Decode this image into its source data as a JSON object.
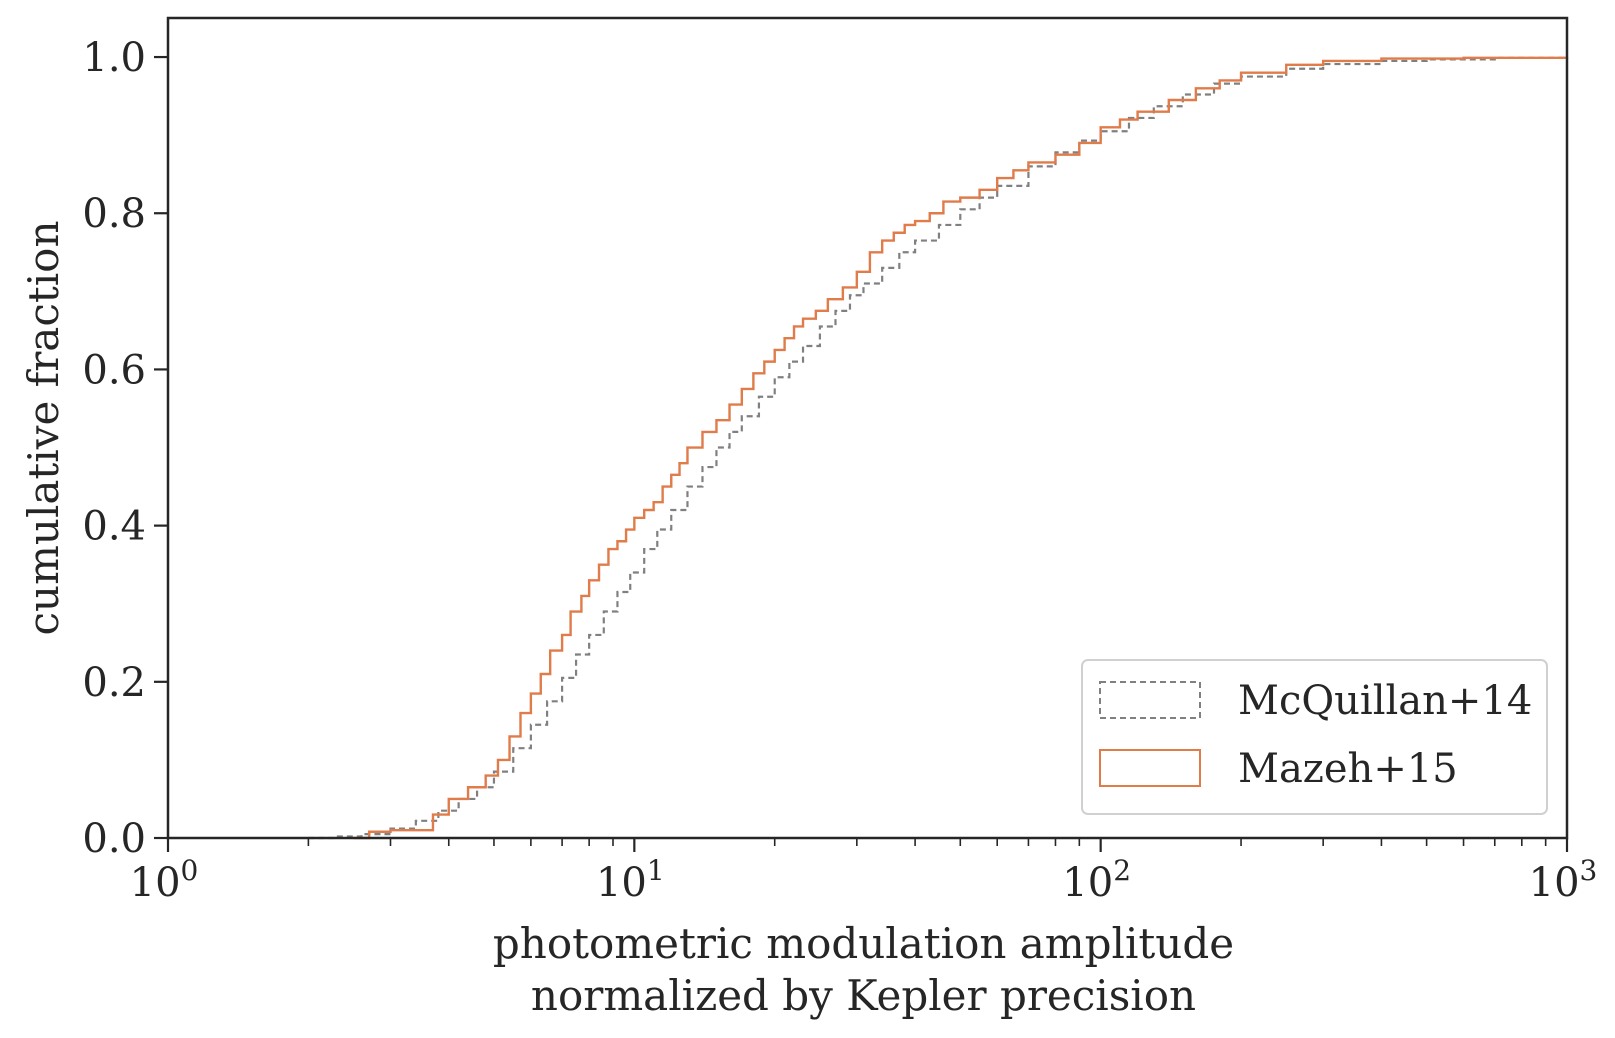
{
  "chart_data": {
    "type": "line",
    "subtype": "cumulative step histogram",
    "xlabel_line1": "photometric modulation amplitude",
    "xlabel_line2": "normalized by Kepler precision",
    "ylabel": "cumulative fraction",
    "xscale": "log",
    "xlim": [
      1,
      1000
    ],
    "ylim": [
      0,
      1.05
    ],
    "xticks": [
      {
        "base": "10",
        "exp": "0",
        "value": 1
      },
      {
        "base": "10",
        "exp": "1",
        "value": 10
      },
      {
        "base": "10",
        "exp": "2",
        "value": 100
      },
      {
        "base": "10",
        "exp": "3",
        "value": 1000
      }
    ],
    "yticks": [
      "0.0",
      "0.2",
      "0.4",
      "0.6",
      "0.8",
      "1.0"
    ],
    "legend_position": "lower right",
    "grid": false,
    "series": [
      {
        "name": "McQuillan+14",
        "color": "#808080",
        "style": "dashed",
        "x": [
          2.0,
          2.3,
          2.6,
          3.0,
          3.4,
          3.8,
          4.2,
          4.6,
          5.0,
          5.5,
          6.0,
          6.5,
          7.0,
          7.5,
          8.0,
          8.6,
          9.2,
          9.8,
          10.5,
          11.2,
          12.0,
          13.0,
          14.0,
          15.0,
          16.0,
          17.0,
          18.5,
          20.0,
          21.5,
          23.0,
          25.0,
          27.0,
          29.0,
          31.0,
          34.0,
          37.0,
          40.0,
          45.0,
          50.0,
          55.0,
          60.0,
          70.0,
          80.0,
          90.0,
          100.0,
          115.0,
          130.0,
          150.0,
          175.0,
          200.0,
          250.0,
          300.0,
          400.0,
          500.0,
          700.0,
          1000.0
        ],
        "y": [
          0.0,
          0.002,
          0.005,
          0.012,
          0.022,
          0.035,
          0.05,
          0.065,
          0.085,
          0.115,
          0.145,
          0.175,
          0.205,
          0.235,
          0.26,
          0.29,
          0.315,
          0.34,
          0.37,
          0.395,
          0.42,
          0.45,
          0.475,
          0.5,
          0.52,
          0.54,
          0.565,
          0.59,
          0.61,
          0.63,
          0.655,
          0.675,
          0.695,
          0.71,
          0.73,
          0.75,
          0.765,
          0.785,
          0.805,
          0.82,
          0.835,
          0.86,
          0.878,
          0.893,
          0.905,
          0.922,
          0.937,
          0.952,
          0.966,
          0.975,
          0.985,
          0.991,
          0.995,
          0.997,
          0.999,
          1.0
        ]
      },
      {
        "name": "Mazeh+15",
        "color": "#e07b4a",
        "style": "solid",
        "x": [
          2.5,
          2.7,
          3.0,
          3.3,
          3.5,
          3.7,
          4.0,
          4.4,
          4.8,
          5.1,
          5.4,
          5.7,
          6.0,
          6.3,
          6.6,
          7.0,
          7.3,
          7.7,
          8.0,
          8.4,
          8.8,
          9.2,
          9.6,
          10.0,
          10.5,
          11.0,
          11.5,
          12.0,
          12.5,
          13.0,
          14.0,
          15.0,
          16.0,
          17.0,
          18.0,
          19.0,
          20.0,
          21.0,
          22.0,
          23.0,
          24.5,
          26.0,
          28.0,
          30.0,
          32.0,
          34.0,
          36.0,
          38.0,
          40.0,
          43.0,
          46.0,
          50.0,
          55.0,
          60.0,
          65.0,
          70.0,
          80.0,
          90.0,
          100.0,
          110.0,
          120.0,
          140.0,
          160.0,
          180.0,
          200.0,
          250.0,
          300.0,
          400.0,
          600.0,
          1000.0
        ],
        "y": [
          0.0,
          0.008,
          0.01,
          0.01,
          0.01,
          0.03,
          0.05,
          0.065,
          0.08,
          0.1,
          0.13,
          0.16,
          0.185,
          0.21,
          0.24,
          0.26,
          0.29,
          0.31,
          0.33,
          0.35,
          0.37,
          0.38,
          0.395,
          0.41,
          0.42,
          0.43,
          0.45,
          0.465,
          0.48,
          0.5,
          0.52,
          0.535,
          0.555,
          0.575,
          0.595,
          0.61,
          0.625,
          0.64,
          0.655,
          0.665,
          0.675,
          0.69,
          0.705,
          0.725,
          0.75,
          0.765,
          0.775,
          0.785,
          0.79,
          0.8,
          0.815,
          0.82,
          0.83,
          0.845,
          0.855,
          0.865,
          0.875,
          0.89,
          0.91,
          0.92,
          0.93,
          0.945,
          0.96,
          0.97,
          0.98,
          0.99,
          0.995,
          0.998,
          0.999,
          1.0
        ]
      }
    ]
  }
}
